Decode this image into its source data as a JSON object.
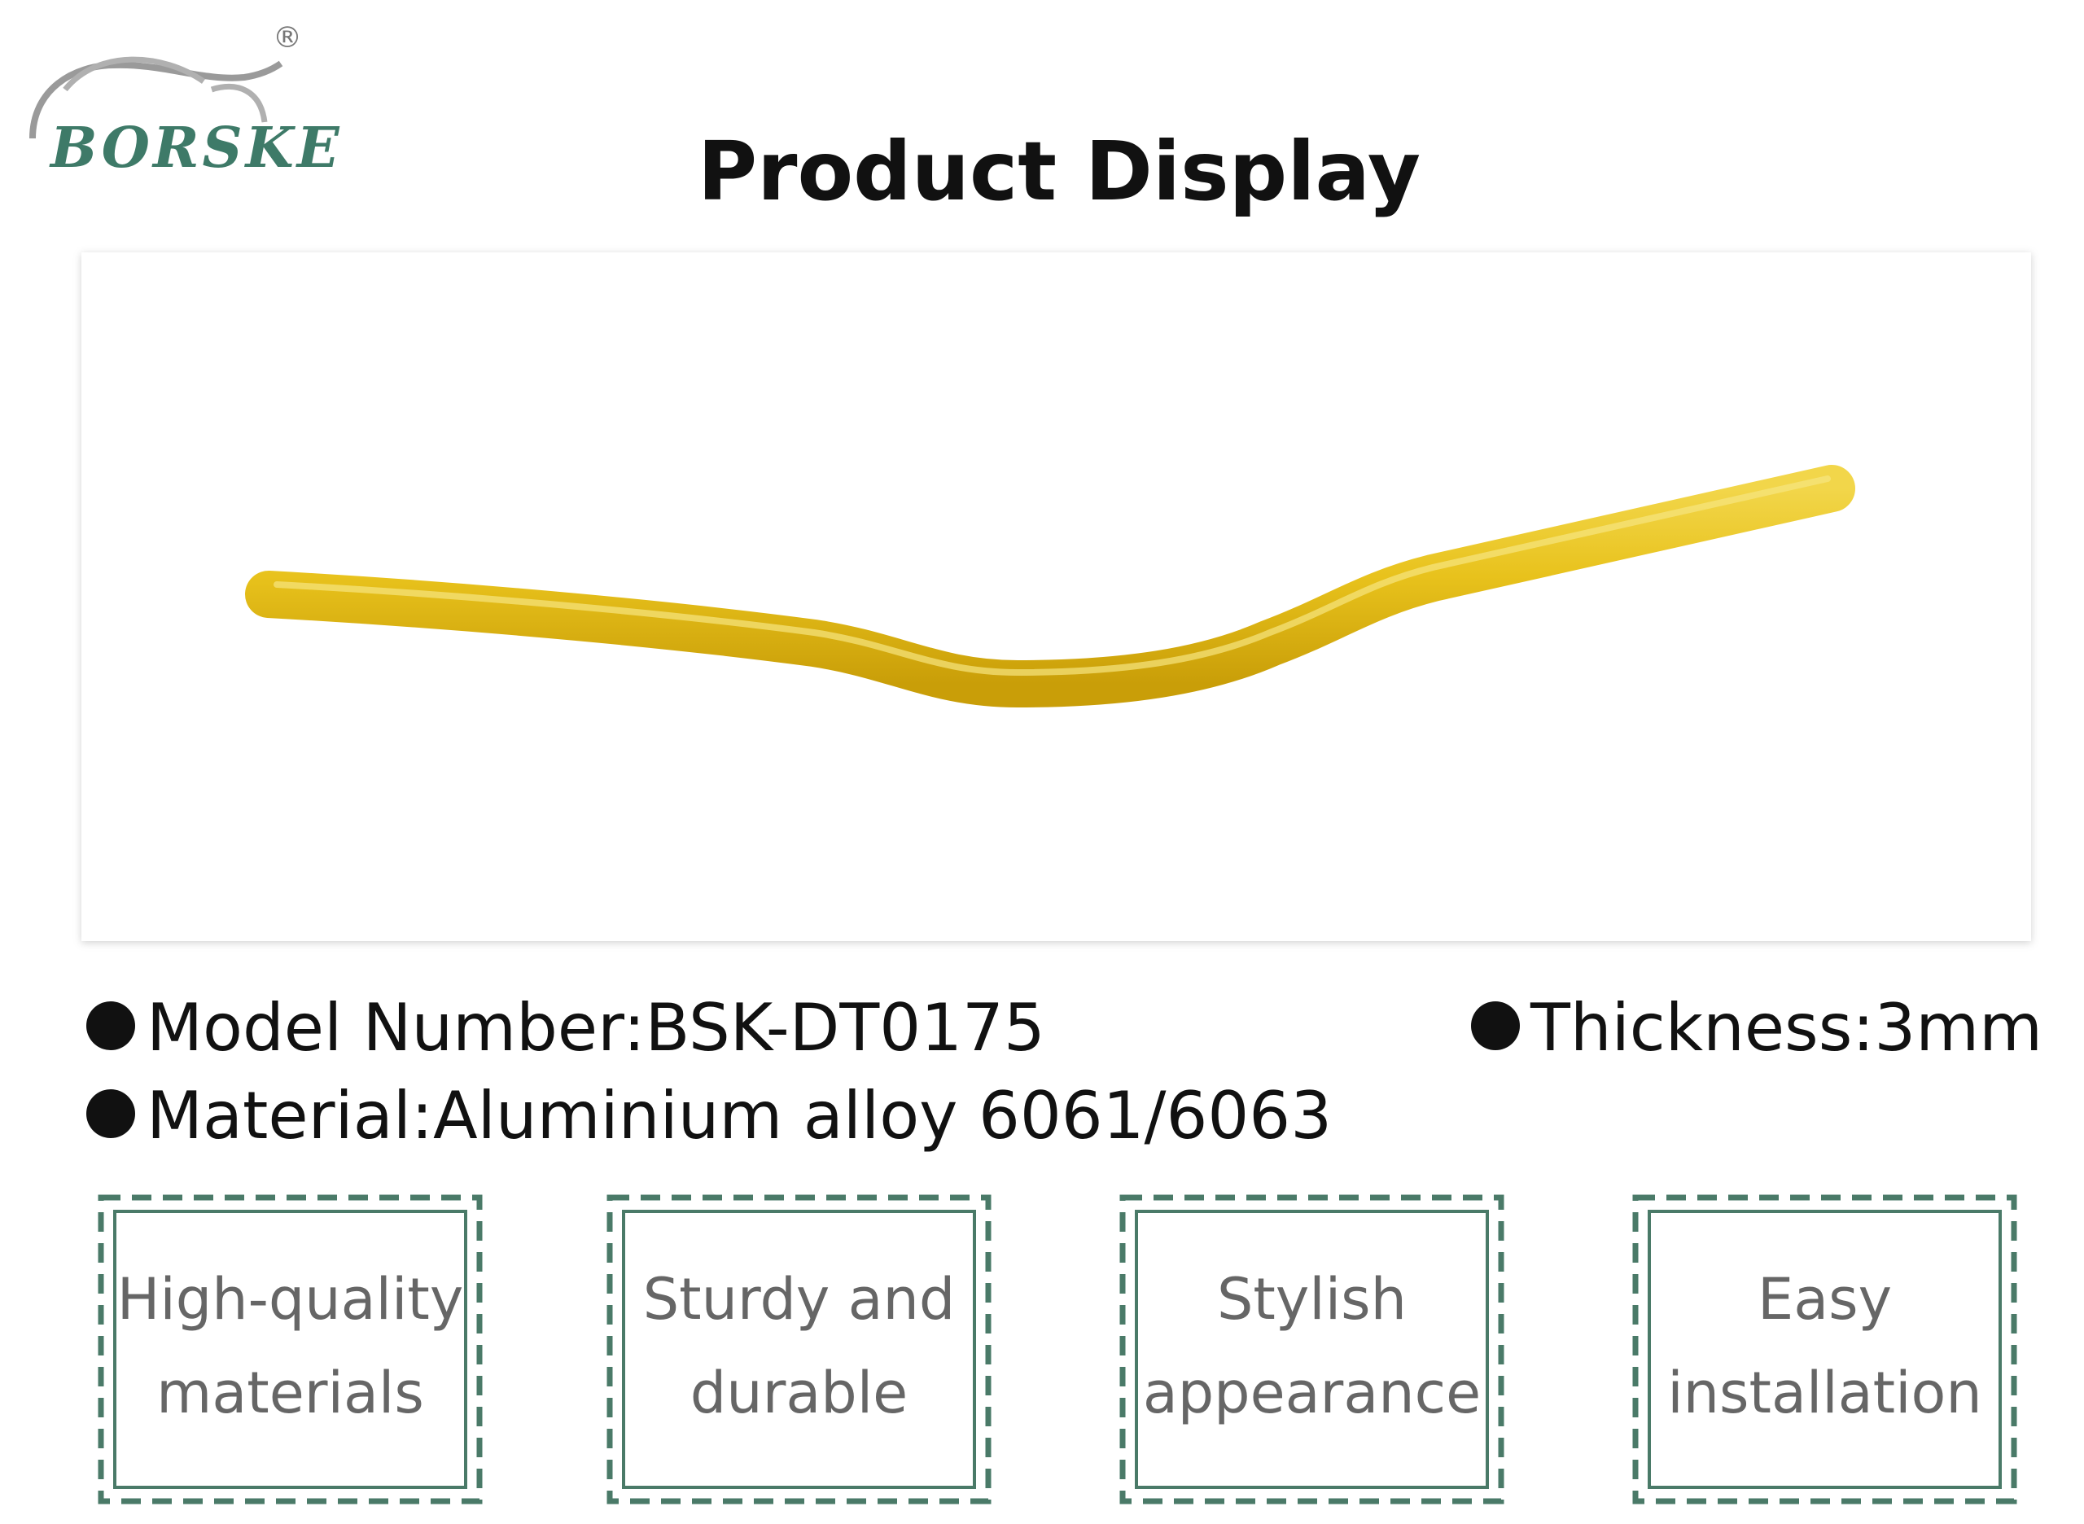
{
  "logo": {
    "brand": "BORSKE",
    "mark": "®"
  },
  "title": "Product Display",
  "specs": {
    "model": "Model Number:BSK-DT0175",
    "thickness": "Thickness:3mm",
    "material": "Material:Aluminium alloy 6061/6063"
  },
  "features": [
    {
      "line1": "High-quality",
      "line2": "materials"
    },
    {
      "line1": "Sturdy and",
      "line2": "durable"
    },
    {
      "line1": "Stylish",
      "line2": "appearance"
    },
    {
      "line1": "Easy",
      "line2": "installation"
    }
  ]
}
